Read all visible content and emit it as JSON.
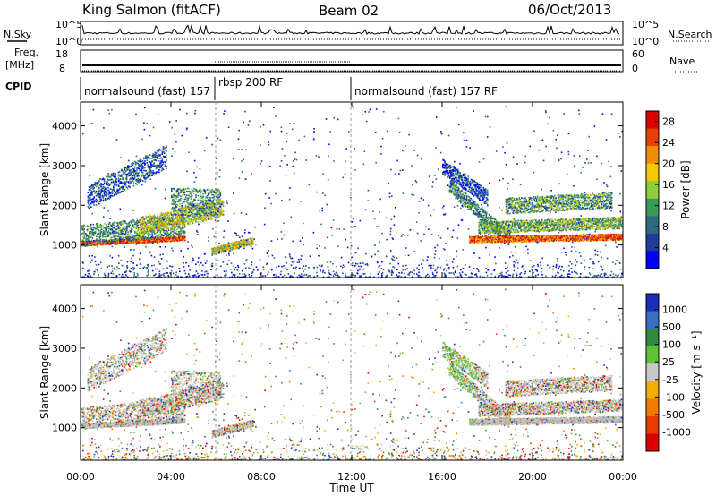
{
  "header": {
    "title": "King Salmon (fitACF)",
    "beam": "Beam 02",
    "date": "06/Oct/2013"
  },
  "top_panels": {
    "nsky_label": "N.Sky",
    "nsearch_label": "N.Search",
    "freq_label": "Freq.",
    "freq_unit": "[MHz]",
    "nave_label": "Nave",
    "cpid_label": "CPID",
    "noise_ticks_left": [
      "10^5",
      "10^0"
    ],
    "noise_ticks_right": [
      "10^5",
      "10^0"
    ],
    "freq_ticks": [
      "18",
      "8"
    ],
    "nave_ticks": [
      "60",
      "0"
    ],
    "cpid_segments": [
      {
        "label": "normalsound (fast) 157",
        "start_hour": 0,
        "end_hour": 6
      },
      {
        "label": "rbsp 200 RF",
        "start_hour": 6,
        "end_hour": 12
      },
      {
        "label": "normalsound (fast) 157 RF",
        "start_hour": 12,
        "end_hour": 24
      }
    ]
  },
  "chart_data": [
    {
      "type": "heatmap",
      "name": "power",
      "ylabel": "Slant Range [km]",
      "xlabel": "",
      "ylim": [
        180,
        4600
      ],
      "xlim_hours": [
        0,
        24
      ],
      "y_ticks": [
        "1000",
        "2000",
        "3000",
        "4000"
      ],
      "colorbar_label": "Power [dB]",
      "colorbar_ticks": [
        "4",
        "8",
        "12",
        "16",
        "20",
        "24",
        "28"
      ],
      "colorbar_range": [
        0,
        30
      ],
      "colors": [
        "#0000ff",
        "#1e3c9c",
        "#2e6b7e",
        "#3a9a5a",
        "#8fce3a",
        "#f5c900",
        "#f08c00",
        "#e84000",
        "#dd0000"
      ]
    },
    {
      "type": "heatmap",
      "name": "velocity",
      "ylabel": "Slant Range [km]",
      "xlabel": "Time UT",
      "ylim": [
        180,
        4600
      ],
      "xlim_hours": [
        0,
        24
      ],
      "y_ticks": [
        "1000",
        "2000",
        "3000",
        "4000"
      ],
      "x_ticks": [
        "00:00",
        "04:00",
        "08:00",
        "12:00",
        "16:00",
        "20:00",
        "00:00"
      ],
      "colorbar_label": "Velocity [m s⁻¹]",
      "colorbar_ticks": [
        "1000",
        "500",
        "100",
        "25",
        "-25",
        "-100",
        "-500",
        "-1000"
      ],
      "colors": [
        "#1a2fb5",
        "#3a6fbf",
        "#2f8a3a",
        "#61c23a",
        "#c8c8c8",
        "#f0b000",
        "#f07a00",
        "#e83a00",
        "#dd0000"
      ],
      "ground_scatter_color": "#bdbdbd"
    }
  ],
  "colors": {
    "axis": "#000000",
    "background": "#ffffff",
    "dotted_separator": "#999999"
  }
}
